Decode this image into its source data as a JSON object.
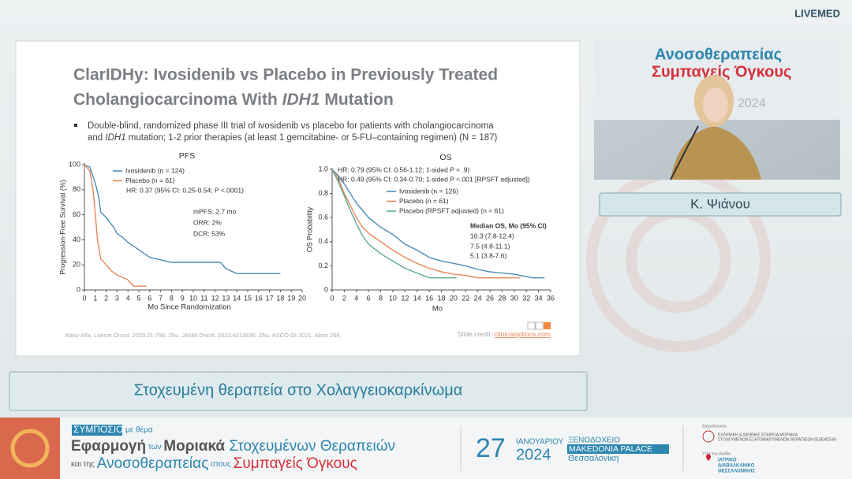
{
  "header": {
    "brand": "LIVEMED"
  },
  "slide": {
    "title": [
      "ClarIDHy: Ivosidenib vs Placebo in Previously Treated",
      "Cholangiocarcinoma With ",
      "IDH1",
      " Mutation"
    ],
    "bullet": [
      "Double-blind, randomized phase III trial of ivosidenib vs placebo for patients with cholangiocarcinoma",
      "and ",
      "IDH1",
      " mutation; 1-2 prior therapies (at least 1 gemcitabine- or 5-FU–containing regimen) (N = 187)"
    ],
    "charts": [
      {
        "type": "line",
        "title": "PFS",
        "ylabel": "Progression-Free Survival (%)",
        "xlabel": "Mo Since Randomization",
        "xlim": [
          0,
          20
        ],
        "xticks": [
          0,
          1,
          2,
          3,
          4,
          5,
          6,
          7,
          8,
          9,
          10,
          11,
          12,
          13,
          14,
          15,
          16,
          17,
          18,
          19,
          20
        ],
        "ylim": [
          0,
          100
        ],
        "yticks": [
          0,
          20,
          40,
          60,
          80,
          100
        ],
        "series": [
          {
            "name": "Ivosidenib (n = 124)",
            "color": "#4a8db3",
            "x": [
              0,
              0.5,
              1,
              1.3,
              1.5,
              2,
              2.5,
              2.7,
              3,
              3.5,
              4,
              4.5,
              5,
              5.5,
              6,
              7,
              8,
              10,
              12.5,
              13,
              14,
              18
            ],
            "values": [
              100,
              98,
              85,
              75,
              62,
              58,
              52,
              50,
              45,
              42,
              38,
              35,
              32,
              29,
              26,
              24,
              22,
              22,
              22,
              17,
              13,
              13
            ]
          },
          {
            "name": "Placebo (n = 61)",
            "color": "#e8875a",
            "x": [
              0,
              0.5,
              0.8,
              1,
              1.2,
              1.5,
              2,
              2.5,
              3,
              3.5,
              4,
              4.5,
              5.7
            ],
            "values": [
              100,
              95,
              80,
              60,
              40,
              25,
              20,
              15,
              12,
              10,
              8,
              3,
              3
            ]
          }
        ],
        "notes": [
          "HR: 0.37 (95% CI: 0.25-0.54; P <.0001)",
          "mPFS: 2.7 mo",
          "ORR: 2%",
          "DCR: 53%"
        ]
      },
      {
        "type": "line",
        "title": "OS",
        "ylabel": "OS Probability",
        "xlabel": "Mo",
        "xlim": [
          0,
          36
        ],
        "xticks": [
          0,
          2,
          4,
          6,
          8,
          10,
          12,
          14,
          16,
          18,
          20,
          22,
          24,
          26,
          28,
          30,
          32,
          34,
          36
        ],
        "ylim": [
          0,
          1
        ],
        "yticks": [
          0,
          0.2,
          0.4,
          0.6,
          0.8,
          {
            "value": 1,
            "label": "1.0"
          }
        ],
        "series": [
          {
            "name": "Ivosidenib (n = 126)",
            "color": "#4a8db3",
            "x": [
              0,
              1,
              2,
              3,
              4,
              5,
              6,
              8,
              10,
              12,
              14,
              16,
              18,
              20,
              22,
              24,
              26,
              28,
              30,
              33,
              35
            ],
            "values": [
              1,
              0.95,
              0.88,
              0.8,
              0.72,
              0.66,
              0.6,
              0.52,
              0.46,
              0.38,
              0.33,
              0.27,
              0.24,
              0.22,
              0.2,
              0.17,
              0.15,
              0.14,
              0.13,
              0.1,
              0.1
            ]
          },
          {
            "name": "Placebo (n = 61)",
            "color": "#e8875a",
            "x": [
              0,
              1,
              2,
              3,
              4,
              5,
              6,
              8,
              10,
              12,
              14,
              16,
              18,
              20,
              22,
              24,
              27,
              31
            ],
            "values": [
              1,
              0.93,
              0.8,
              0.7,
              0.6,
              0.52,
              0.47,
              0.4,
              0.33,
              0.27,
              0.22,
              0.18,
              0.15,
              0.13,
              0.12,
              0.1,
              0.1,
              0.1
            ]
          },
          {
            "name": "Placebo (RPSFT adjusted) (n = 61)",
            "color": "#5aab8a",
            "x": [
              0,
              1,
              2,
              3,
              4,
              5,
              6,
              8,
              10,
              12,
              14,
              16,
              20.5
            ],
            "values": [
              1,
              0.9,
              0.78,
              0.66,
              0.55,
              0.45,
              0.38,
              0.3,
              0.24,
              0.18,
              0.14,
              0.1,
              0.1
            ]
          }
        ],
        "notes": [
          "HR: 0.79 (95% CI: 0.56-1.12; 1-sided P = .9)",
          "HR: 0.49 (95% CI: 0.34-0.70; 1-sided P <.001 [RPSFT adjusted])",
          "Median OS, Mo (95% CI)",
          "10.3 (7.8-12.4)",
          "7.5 (4.8-11.1)",
          "5.1 (3.8-7.6)"
        ]
      }
    ],
    "footnote": "Abou-Alfa. Lancet Oncol. 2020;21:796. Zhu. JAMA Oncol. 2021;e213836. Zhu. ASCO GI 2021. Abstr 266.",
    "credit": [
      "Slide credit: ",
      "clinicaloptions.com"
    ]
  },
  "video": {
    "backdrop": [
      "Ανοσοθεραπείας",
      "Συμπαγείς Όγκους",
      "2024"
    ]
  },
  "speaker": "Κ. Ψιάνου",
  "caption": "Στοχευμένη θεραπεία στο Χολαγγειοκαρκίνωμα",
  "banner": {
    "symposium": "ΣΥΜΠΟΣΙΟ",
    "topic": "με θέμα",
    "line1": [
      "Εφαρμογή",
      " των ",
      "Μοριακά",
      " Στοχευμένων Θεραπειών"
    ],
    "line2": [
      "και της ",
      "Ανοσοθεραπείας",
      " στους ",
      "Συμπαγείς Όγκους"
    ],
    "day": "27",
    "month": "ΙΑΝΟΥΑΡΙΟΥ",
    "year": "2024",
    "venue": [
      "ΞΕΝΟΔΟΧΕΙΟ",
      "MAKEDONIA PALACE",
      "Θεσσαλονίκη"
    ],
    "organizer_label": "Διοργάνωση",
    "organizer": [
      "ΕΛΛΗΝΙΚΗ & ΔΙΕΘΝΗΣ ΕΤΑΙΡΕΙΑ ΜΟΡΙΑΚΑ",
      "ΣΤΟΧΕΥΜΕΝΩΝ ΕΞΑΤΟΜΙΚΕΥΜΕΝΩΝ ΘΕΡΑΠΕΙΩΝ (ΕΔΕΜΣΕΘ)"
    ],
    "auspices_label": "Υπό την Αιγίδα",
    "auspices": [
      "ΙΑΤΡΙΚΟ",
      "ΔΙΑΒΑΛΚΑΝΙΚΟ",
      "ΘΕΣΣΑΛΟΝΙΚΗΣ"
    ]
  }
}
